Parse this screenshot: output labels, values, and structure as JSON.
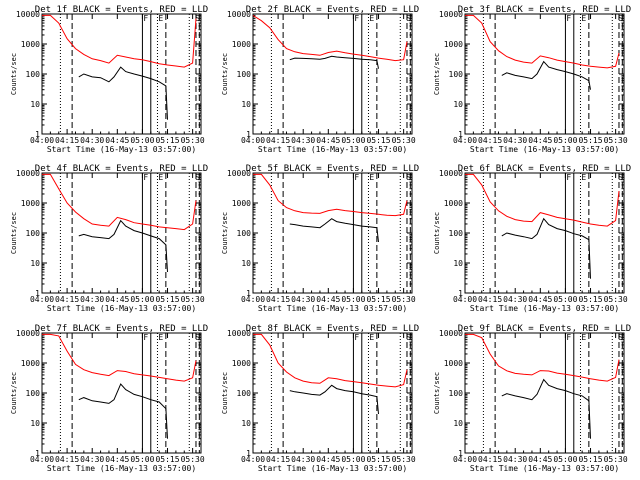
{
  "figure": {
    "xlabel": "Start Time (16-May-13 03:57:00)",
    "ylabel": "Counts/sec",
    "colors": {
      "events": "#000000",
      "lld": "#ff0000",
      "frame": "#000000"
    }
  },
  "chart_data": [
    {
      "type": "line",
      "scale_y": "log",
      "title": "Det 1f BLACK = Events, RED = LLD",
      "xlabel": "Start Time (16-May-13 03:57:00)",
      "ylabel": "Counts/sec",
      "xlim": [
        "04:00",
        "05:35"
      ],
      "ylim": [
        1,
        10000
      ],
      "x_ticks": [
        "04:00",
        "04:15",
        "04:30",
        "04:45",
        "05:00",
        "05:15",
        "05:30"
      ],
      "y_ticks": [
        "1",
        "10",
        "100",
        "1000",
        "10000"
      ],
      "markers": [
        "F",
        "E",
        "S"
      ],
      "series": [
        {
          "name": "Events",
          "x": [
            "04:22",
            "04:25",
            "04:30",
            "04:35",
            "04:40",
            "04:43",
            "04:47",
            "04:50",
            "04:55",
            "05:00",
            "05:05",
            "05:10",
            "05:14",
            "05:15"
          ],
          "values": [
            80,
            100,
            80,
            75,
            55,
            80,
            170,
            120,
            100,
            85,
            70,
            55,
            40,
            3
          ]
        },
        {
          "name": "LLD",
          "x": [
            "04:00",
            "04:05",
            "04:10",
            "04:15",
            "04:20",
            "04:25",
            "04:30",
            "04:35",
            "04:40",
            "04:45",
            "04:50",
            "04:55",
            "05:00",
            "05:05",
            "05:10",
            "05:15",
            "05:20",
            "05:25",
            "05:30",
            "05:32"
          ],
          "values": [
            9000,
            9000,
            5000,
            1500,
            700,
            450,
            320,
            280,
            230,
            420,
            370,
            320,
            300,
            260,
            220,
            200,
            185,
            170,
            230,
            7000
          ]
        }
      ]
    },
    {
      "type": "line",
      "scale_y": "log",
      "title": "Det 2f BLACK = Events, RED = LLD",
      "xlabel": "Start Time (16-May-13 03:57:00)",
      "ylabel": "Counts/sec",
      "xlim": [
        "04:00",
        "05:35"
      ],
      "ylim": [
        1,
        10000
      ],
      "x_ticks": [
        "04:00",
        "04:15",
        "04:30",
        "04:45",
        "05:00",
        "05:15",
        "05:30"
      ],
      "y_ticks": [
        "1",
        "10",
        "100",
        "1000",
        "10000"
      ],
      "markers": [
        "F",
        "E",
        "S"
      ],
      "series": [
        {
          "name": "Events",
          "x": [
            "04:22",
            "04:25",
            "04:30",
            "04:35",
            "04:40",
            "04:43",
            "04:47",
            "04:50",
            "04:55",
            "05:00",
            "05:05",
            "05:10",
            "05:14",
            "05:15"
          ],
          "values": [
            300,
            340,
            330,
            320,
            310,
            330,
            390,
            370,
            350,
            330,
            310,
            300,
            280,
            150
          ]
        },
        {
          "name": "LLD",
          "x": [
            "04:00",
            "04:05",
            "04:10",
            "04:15",
            "04:20",
            "04:25",
            "04:30",
            "04:35",
            "04:40",
            "04:45",
            "04:50",
            "04:55",
            "05:00",
            "05:05",
            "05:10",
            "05:15",
            "05:20",
            "05:25",
            "05:30",
            "05:32"
          ],
          "values": [
            9000,
            6000,
            3500,
            1400,
            700,
            550,
            480,
            450,
            420,
            520,
            580,
            510,
            460,
            420,
            380,
            340,
            310,
            280,
            300,
            1200
          ]
        }
      ]
    },
    {
      "type": "line",
      "scale_y": "log",
      "title": "Det 3f BLACK = Events, RED = LLD",
      "xlabel": "Start Time (16-May-13 03:57:00)",
      "ylabel": "Counts/sec",
      "xlim": [
        "04:00",
        "05:35"
      ],
      "ylim": [
        1,
        10000
      ],
      "x_ticks": [
        "04:00",
        "04:15",
        "04:30",
        "04:45",
        "05:00",
        "05:15",
        "05:30"
      ],
      "y_ticks": [
        "1",
        "10",
        "100",
        "1000",
        "10000"
      ],
      "markers": [
        "F",
        "E",
        "S"
      ],
      "series": [
        {
          "name": "Events",
          "x": [
            "04:22",
            "04:25",
            "04:30",
            "04:35",
            "04:40",
            "04:43",
            "04:47",
            "04:50",
            "04:55",
            "05:00",
            "05:05",
            "05:10",
            "05:14",
            "05:15"
          ],
          "values": [
            90,
            110,
            90,
            80,
            70,
            100,
            260,
            170,
            140,
            120,
            100,
            80,
            60,
            30
          ]
        },
        {
          "name": "LLD",
          "x": [
            "04:00",
            "04:05",
            "04:10",
            "04:15",
            "04:20",
            "04:25",
            "04:30",
            "04:35",
            "04:40",
            "04:45",
            "04:50",
            "04:55",
            "05:00",
            "05:05",
            "05:10",
            "05:15",
            "05:20",
            "05:25",
            "05:30",
            "05:32"
          ],
          "values": [
            9000,
            9000,
            5000,
            1200,
            600,
            380,
            290,
            250,
            230,
            400,
            350,
            290,
            260,
            230,
            200,
            180,
            170,
            160,
            180,
            500
          ]
        }
      ]
    },
    {
      "type": "line",
      "scale_y": "log",
      "title": "Det 4f BLACK = Events, RED = LLD",
      "xlabel": "Start Time (16-May-13 03:57:00)",
      "ylabel": "Counts/sec",
      "xlim": [
        "04:00",
        "05:35"
      ],
      "ylim": [
        1,
        10000
      ],
      "x_ticks": [
        "04:00",
        "04:15",
        "04:30",
        "04:45",
        "05:00",
        "05:15",
        "05:30"
      ],
      "y_ticks": [
        "1",
        "10",
        "100",
        "1000",
        "10000"
      ],
      "markers": [
        "F",
        "E",
        "S"
      ],
      "series": [
        {
          "name": "Events",
          "x": [
            "04:22",
            "04:25",
            "04:30",
            "04:35",
            "04:40",
            "04:43",
            "04:47",
            "04:50",
            "04:55",
            "05:00",
            "05:05",
            "05:10",
            "05:14",
            "05:15"
          ],
          "values": [
            80,
            90,
            75,
            70,
            65,
            90,
            260,
            170,
            120,
            100,
            80,
            65,
            40,
            5
          ]
        },
        {
          "name": "LLD",
          "x": [
            "04:00",
            "04:05",
            "04:10",
            "04:15",
            "04:20",
            "04:25",
            "04:30",
            "04:35",
            "04:40",
            "04:45",
            "04:50",
            "04:55",
            "05:00",
            "05:05",
            "05:10",
            "05:15",
            "05:20",
            "05:25",
            "05:30",
            "05:32"
          ],
          "values": [
            9000,
            9000,
            3000,
            1000,
            500,
            300,
            200,
            180,
            170,
            330,
            280,
            220,
            200,
            180,
            160,
            150,
            140,
            130,
            200,
            1200
          ]
        }
      ]
    },
    {
      "type": "line",
      "scale_y": "log",
      "title": "Det 5f BLACK = Events, RED = LLD",
      "xlabel": "Start Time (16-May-13 03:57:00)",
      "ylabel": "Counts/sec",
      "xlim": [
        "04:00",
        "05:35"
      ],
      "ylim": [
        1,
        10000
      ],
      "x_ticks": [
        "04:00",
        "04:15",
        "04:30",
        "04:45",
        "05:00",
        "05:15",
        "05:30"
      ],
      "y_ticks": [
        "1",
        "10",
        "100",
        "1000",
        "10000"
      ],
      "markers": [
        "F",
        "E",
        "S"
      ],
      "series": [
        {
          "name": "Events",
          "x": [
            "04:22",
            "04:25",
            "04:30",
            "04:35",
            "04:40",
            "04:43",
            "04:47",
            "04:50",
            "04:55",
            "05:00",
            "05:05",
            "05:10",
            "05:14",
            "05:15"
          ],
          "values": [
            200,
            190,
            170,
            160,
            150,
            200,
            300,
            240,
            210,
            190,
            170,
            160,
            150,
            50
          ]
        },
        {
          "name": "LLD",
          "x": [
            "04:00",
            "04:05",
            "04:10",
            "04:15",
            "04:20",
            "04:25",
            "04:30",
            "04:35",
            "04:40",
            "04:45",
            "04:50",
            "04:55",
            "05:00",
            "05:05",
            "05:10",
            "05:15",
            "05:20",
            "05:25",
            "05:30",
            "05:32"
          ],
          "values": [
            9000,
            9000,
            4000,
            1200,
            700,
            550,
            480,
            460,
            450,
            560,
            620,
            560,
            520,
            480,
            450,
            420,
            390,
            380,
            420,
            1200
          ]
        }
      ]
    },
    {
      "type": "line",
      "scale_y": "log",
      "title": "Det 6f BLACK = Events, RED = LLD",
      "xlabel": "Start Time (16-May-13 03:57:00)",
      "ylabel": "Counts/sec",
      "xlim": [
        "04:00",
        "05:35"
      ],
      "ylim": [
        1,
        10000
      ],
      "x_ticks": [
        "04:00",
        "04:15",
        "04:30",
        "04:45",
        "05:00",
        "05:15",
        "05:30"
      ],
      "y_ticks": [
        "1",
        "10",
        "100",
        "1000",
        "10000"
      ],
      "markers": [
        "F",
        "E",
        "S"
      ],
      "series": [
        {
          "name": "Events",
          "x": [
            "04:22",
            "04:25",
            "04:30",
            "04:35",
            "04:40",
            "04:43",
            "04:47",
            "04:50",
            "04:55",
            "05:00",
            "05:05",
            "05:10",
            "05:14",
            "05:15"
          ],
          "values": [
            80,
            100,
            85,
            75,
            65,
            90,
            300,
            190,
            140,
            120,
            95,
            80,
            60,
            3
          ]
        },
        {
          "name": "LLD",
          "x": [
            "04:00",
            "04:05",
            "04:10",
            "04:15",
            "04:20",
            "04:25",
            "04:30",
            "04:35",
            "04:40",
            "04:45",
            "04:50",
            "04:55",
            "05:00",
            "05:05",
            "05:10",
            "05:15",
            "05:20",
            "05:25",
            "05:30",
            "05:32"
          ],
          "values": [
            9000,
            9000,
            4000,
            1100,
            550,
            360,
            280,
            250,
            240,
            480,
            400,
            330,
            300,
            270,
            230,
            200,
            180,
            170,
            260,
            2500
          ]
        }
      ]
    },
    {
      "type": "line",
      "scale_y": "log",
      "title": "Det 7f BLACK = Events, RED = LLD",
      "xlabel": "Start Time (16-May-13 03:57:00)",
      "ylabel": "Counts/sec",
      "xlim": [
        "04:00",
        "05:35"
      ],
      "ylim": [
        1,
        10000
      ],
      "x_ticks": [
        "04:00",
        "04:15",
        "04:30",
        "04:45",
        "05:00",
        "05:15",
        "05:30"
      ],
      "y_ticks": [
        "1",
        "10",
        "100",
        "1000",
        "10000"
      ],
      "markers": [
        "F",
        "E",
        "S"
      ],
      "series": [
        {
          "name": "Events",
          "x": [
            "04:22",
            "04:25",
            "04:30",
            "04:35",
            "04:40",
            "04:43",
            "04:47",
            "04:50",
            "04:55",
            "05:00",
            "05:05",
            "05:10",
            "05:14",
            "05:15"
          ],
          "values": [
            60,
            70,
            55,
            50,
            45,
            60,
            200,
            130,
            90,
            75,
            60,
            50,
            30,
            3
          ]
        },
        {
          "name": "LLD",
          "x": [
            "04:00",
            "04:05",
            "04:10",
            "04:15",
            "04:20",
            "04:25",
            "04:30",
            "04:35",
            "04:40",
            "04:45",
            "04:50",
            "04:55",
            "05:00",
            "05:05",
            "05:10",
            "05:15",
            "05:20",
            "05:25",
            "05:30",
            "05:32"
          ],
          "values": [
            9000,
            9000,
            8000,
            2500,
            900,
            600,
            480,
            420,
            380,
            560,
            520,
            440,
            400,
            370,
            330,
            300,
            270,
            250,
            320,
            1200
          ]
        }
      ]
    },
    {
      "type": "line",
      "scale_y": "log",
      "title": "Det 8f BLACK = Events, RED = LLD",
      "xlabel": "Start Time (16-May-13 03:57:00)",
      "ylabel": "Counts/sec",
      "xlim": [
        "04:00",
        "05:35"
      ],
      "ylim": [
        1,
        10000
      ],
      "x_ticks": [
        "04:00",
        "04:15",
        "04:30",
        "04:45",
        "05:00",
        "05:15",
        "05:30"
      ],
      "y_ticks": [
        "1",
        "10",
        "100",
        "1000",
        "10000"
      ],
      "markers": [
        "F",
        "E",
        "S"
      ],
      "series": [
        {
          "name": "Events",
          "x": [
            "04:22",
            "04:25",
            "04:30",
            "04:35",
            "04:40",
            "04:43",
            "04:47",
            "04:50",
            "04:55",
            "05:00",
            "05:05",
            "05:10",
            "05:14",
            "05:15"
          ],
          "values": [
            120,
            110,
            100,
            90,
            85,
            110,
            180,
            140,
            120,
            110,
            95,
            85,
            75,
            20
          ]
        },
        {
          "name": "LLD",
          "x": [
            "04:00",
            "04:05",
            "04:10",
            "04:15",
            "04:20",
            "04:25",
            "04:30",
            "04:35",
            "04:40",
            "04:45",
            "04:50",
            "04:55",
            "05:00",
            "05:05",
            "05:10",
            "05:15",
            "05:20",
            "05:25",
            "05:30",
            "05:32"
          ],
          "values": [
            9000,
            9000,
            4000,
            1000,
            500,
            320,
            250,
            220,
            210,
            320,
            300,
            260,
            240,
            220,
            200,
            180,
            170,
            160,
            190,
            600
          ]
        }
      ]
    },
    {
      "type": "line",
      "scale_y": "log",
      "title": "Det 9f BLACK = Events, RED = LLD",
      "xlabel": "Start Time (16-May-13 03:57:00)",
      "ylabel": "Counts/sec",
      "xlim": [
        "04:00",
        "05:35"
      ],
      "ylim": [
        1,
        10000
      ],
      "x_ticks": [
        "04:00",
        "04:15",
        "04:30",
        "04:45",
        "05:00",
        "05:15",
        "05:30"
      ],
      "y_ticks": [
        "1",
        "10",
        "100",
        "1000",
        "10000"
      ],
      "markers": [
        "F",
        "E",
        "S"
      ],
      "series": [
        {
          "name": "Events",
          "x": [
            "04:22",
            "04:25",
            "04:30",
            "04:35",
            "04:40",
            "04:43",
            "04:47",
            "04:50",
            "04:55",
            "05:00",
            "05:05",
            "05:10",
            "05:14",
            "05:15"
          ],
          "values": [
            80,
            95,
            80,
            70,
            60,
            90,
            280,
            180,
            140,
            120,
            95,
            80,
            55,
            3
          ]
        },
        {
          "name": "LLD",
          "x": [
            "04:00",
            "04:05",
            "04:10",
            "04:15",
            "04:20",
            "04:25",
            "04:30",
            "04:35",
            "04:40",
            "04:45",
            "04:50",
            "04:55",
            "05:00",
            "05:05",
            "05:10",
            "05:15",
            "05:20",
            "05:25",
            "05:30",
            "05:32"
          ],
          "values": [
            9000,
            9000,
            7000,
            2000,
            800,
            550,
            450,
            420,
            400,
            560,
            540,
            460,
            420,
            380,
            340,
            300,
            270,
            250,
            330,
            1300
          ]
        }
      ]
    }
  ]
}
